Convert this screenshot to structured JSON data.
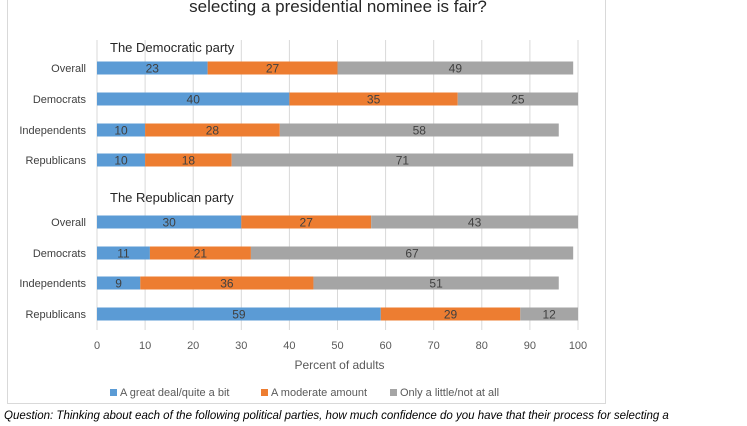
{
  "chart_data": {
    "type": "bar",
    "orientation": "horizontal",
    "stacked": true,
    "title": "selecting a presidential nominee is fair?",
    "xlabel": "Percent of adults",
    "xlim": [
      0,
      100
    ],
    "x_ticks": [
      0,
      10,
      20,
      30,
      40,
      50,
      60,
      70,
      80,
      90,
      100
    ],
    "grid": "vertical",
    "legend_position": "bottom",
    "colors": [
      "#5b9bd5",
      "#ed7d31",
      "#a5a5a5"
    ],
    "series": [
      {
        "name": "A great deal/quite a bit"
      },
      {
        "name": "A moderate amount"
      },
      {
        "name": "Only a little/not at all"
      }
    ],
    "groups": [
      {
        "label": "The Democratic party",
        "rows": [
          {
            "category": "Overall",
            "values": [
              23,
              27,
              49
            ]
          },
          {
            "category": "Democrats",
            "values": [
              40,
              35,
              25
            ]
          },
          {
            "category": "Independents",
            "values": [
              10,
              28,
              58
            ]
          },
          {
            "category": "Republicans",
            "values": [
              10,
              18,
              71
            ]
          }
        ]
      },
      {
        "label": "The Republican party",
        "rows": [
          {
            "category": "Overall",
            "values": [
              30,
              27,
              43
            ]
          },
          {
            "category": "Democrats",
            "values": [
              11,
              21,
              67
            ]
          },
          {
            "category": "Independents",
            "values": [
              9,
              36,
              51
            ]
          },
          {
            "category": "Republicans",
            "values": [
              59,
              29,
              12
            ]
          }
        ]
      }
    ]
  },
  "footnote": "Question: Thinking about each of the following political parties, how much confidence do you have that their process for selecting a"
}
